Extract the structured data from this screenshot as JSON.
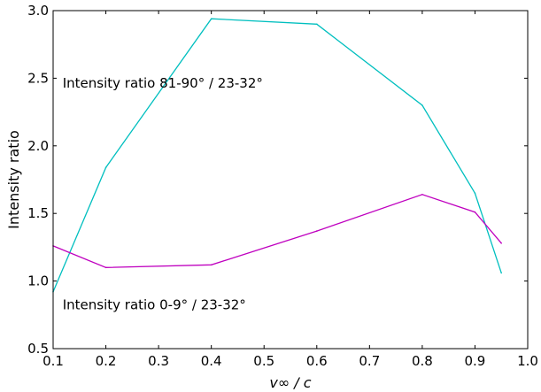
{
  "chart_data": {
    "type": "line",
    "xlabel": "v∞ / c",
    "ylabel": "Intensity ratio",
    "xlim": [
      0.1,
      1.0
    ],
    "ylim": [
      0.5,
      3.0
    ],
    "xticks": [
      "0.1",
      "0.2",
      "0.3",
      "0.4",
      "0.5",
      "0.6",
      "0.7",
      "0.8",
      "0.9",
      "1.0"
    ],
    "yticks": [
      "0.5",
      "1.0",
      "1.5",
      "2.0",
      "2.5",
      "3.0"
    ],
    "grid": false,
    "series": [
      {
        "color": "#00bfbf",
        "x": [
          0.1,
          0.2,
          0.4,
          0.6,
          0.8,
          0.9,
          0.95
        ],
        "y": [
          0.92,
          1.84,
          2.94,
          2.9,
          2.3,
          1.65,
          1.06
        ]
      },
      {
        "color": "#bf00bf",
        "x": [
          0.1,
          0.2,
          0.4,
          0.6,
          0.8,
          0.9,
          0.95
        ],
        "y": [
          1.26,
          1.1,
          1.12,
          1.37,
          1.64,
          1.51,
          1.28
        ]
      }
    ],
    "annotations": [
      {
        "text": "Intensity ratio 81-90° / 23-32°",
        "x": 0.118,
        "y": 2.43
      },
      {
        "text": "Intensity ratio 0-9° / 23-32°",
        "x": 0.118,
        "y": 0.79
      }
    ]
  }
}
